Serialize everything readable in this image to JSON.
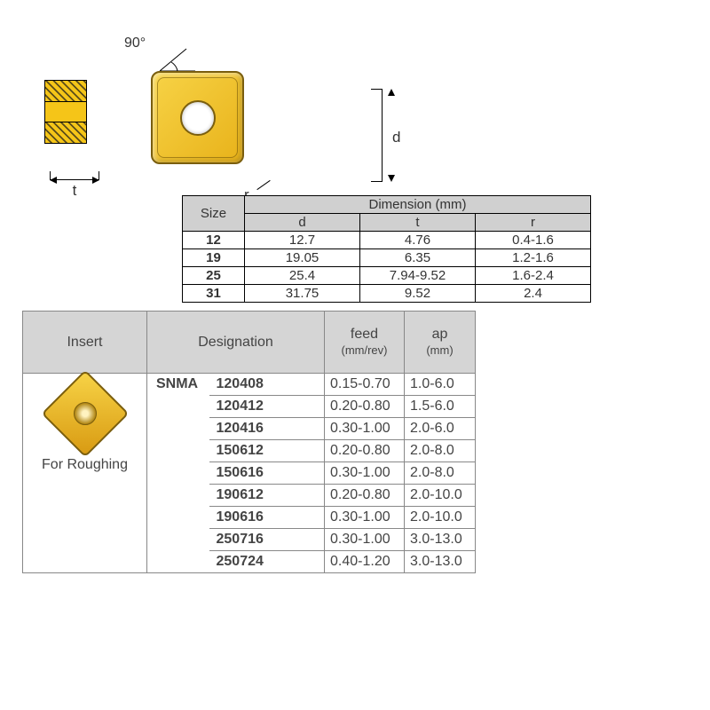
{
  "diagram": {
    "angle_label": "90°",
    "t_label": "t",
    "d_label": "d",
    "r_label": "r",
    "insert_color": "#f5c518",
    "insert_border": "#7a5e0e"
  },
  "dimTable": {
    "size_header": "Size",
    "dimension_header": "Dimension (mm)",
    "cols": [
      "d",
      "t",
      "r"
    ],
    "rows": [
      {
        "size": "12",
        "d": "12.7",
        "t": "4.76",
        "r": "0.4-1.6"
      },
      {
        "size": "19",
        "d": "19.05",
        "t": "6.35",
        "r": "1.2-1.6"
      },
      {
        "size": "25",
        "d": "25.4",
        "t": "7.94-9.52",
        "r": "1.6-2.4"
      },
      {
        "size": "31",
        "d": "31.75",
        "t": "9.52",
        "r": "2.4"
      }
    ],
    "header_bg": "#d0d0d0",
    "border_color": "#000000",
    "col_widths": {
      "size": 70,
      "val": 130
    }
  },
  "mainTable": {
    "headers": {
      "insert": "Insert",
      "designation": "Designation",
      "feed": "feed",
      "feed_unit": "(mm/rev)",
      "ap": "ap",
      "ap_unit": "(mm)"
    },
    "insert_label": "For Roughing",
    "family": "SNMA",
    "rows": [
      {
        "code": "120408",
        "feed": "0.15-0.70",
        "ap": "1.0-6.0"
      },
      {
        "code": "120412",
        "feed": "0.20-0.80",
        "ap": "1.5-6.0"
      },
      {
        "code": "120416",
        "feed": "0.30-1.00",
        "ap": "2.0-6.0"
      },
      {
        "code": "150612",
        "feed": "0.20-0.80",
        "ap": "2.0-8.0"
      },
      {
        "code": "150616",
        "feed": "0.30-1.00",
        "ap": "2.0-8.0"
      },
      {
        "code": "190612",
        "feed": "0.20-0.80",
        "ap": "2.0-10.0"
      },
      {
        "code": "190616",
        "feed": "0.30-1.00",
        "ap": "2.0-10.0"
      },
      {
        "code": "250716",
        "feed": "0.30-1.00",
        "ap": "3.0-13.0"
      },
      {
        "code": "250724",
        "feed": "0.40-1.20",
        "ap": "3.0-13.0"
      }
    ],
    "header_bg": "#d5d5d5",
    "border_color": "#888888"
  }
}
